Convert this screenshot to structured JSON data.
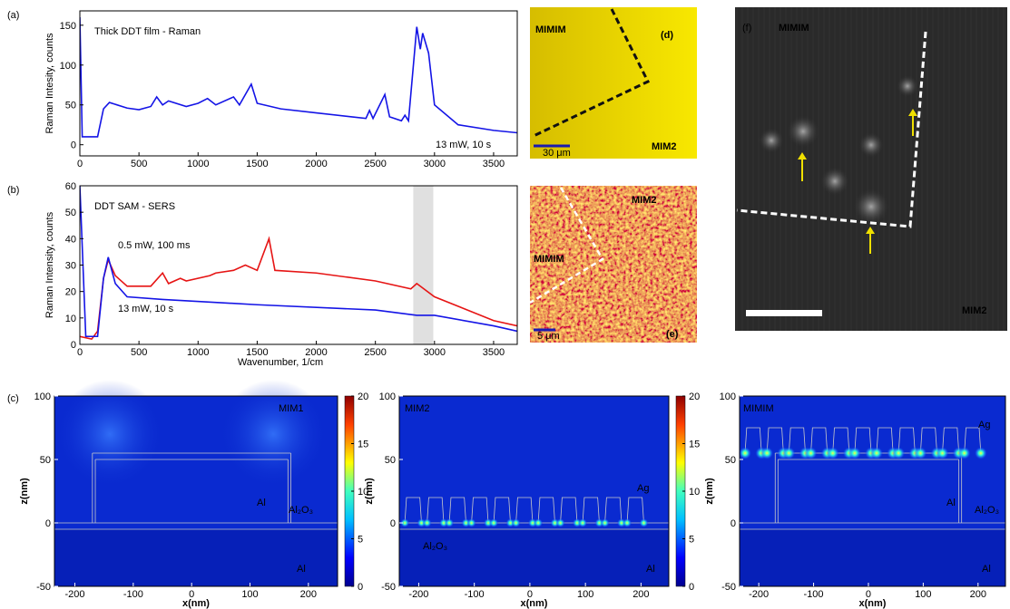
{
  "chart_data": [
    {
      "type": "line",
      "panel_label": "(a)",
      "title": "Thick DDT film - Raman",
      "ylabel": "Raman Intesity, counts",
      "xlim": [
        0,
        3700
      ],
      "ylim": [
        -14,
        168
      ],
      "xticks": [
        0,
        500,
        1000,
        1500,
        2000,
        2500,
        3000,
        3500
      ],
      "yticks": [
        0,
        50,
        100,
        150
      ],
      "annotations": [
        "13 mW, 10 s"
      ],
      "series": [
        {
          "color": "#1414e6",
          "x": [
            0,
            20,
            150,
            200,
            250,
            400,
            500,
            600,
            650,
            700,
            750,
            900,
            1000,
            1080,
            1150,
            1300,
            1350,
            1450,
            1500,
            1700,
            2000,
            2300,
            2420,
            2450,
            2480,
            2580,
            2620,
            2720,
            2750,
            2780,
            2850,
            2880,
            2900,
            2950,
            3000,
            3200,
            3500,
            3700
          ],
          "values": [
            160,
            10,
            10,
            45,
            53,
            46,
            44,
            48,
            60,
            50,
            55,
            48,
            52,
            58,
            50,
            60,
            50,
            76,
            52,
            45,
            40,
            35,
            33,
            43,
            33,
            63,
            35,
            30,
            37,
            30,
            148,
            120,
            140,
            115,
            50,
            25,
            18,
            15
          ]
        }
      ]
    },
    {
      "type": "line",
      "panel_label": "(b)",
      "title": "DDT SAM - SERS",
      "ylabel": "Raman Intensity, counts",
      "xlabel": "Wavenumber, 1/cm",
      "xlim": [
        0,
        3700
      ],
      "ylim": [
        0,
        60
      ],
      "xticks": [
        0,
        500,
        1000,
        1500,
        2000,
        2500,
        3000,
        3500
      ],
      "yticks": [
        0,
        10,
        20,
        30,
        40,
        50,
        60
      ],
      "shade": [
        2820,
        2990
      ],
      "annotations": [
        "0.5 mW, 100  ms",
        "13 mW, 10  s"
      ],
      "series": [
        {
          "color": "#e61414",
          "x": [
            0,
            100,
            150,
            200,
            240,
            300,
            400,
            600,
            700,
            750,
            850,
            900,
            1100,
            1150,
            1300,
            1400,
            1500,
            1600,
            1650,
            2000,
            2500,
            2800,
            2850,
            3000,
            3500,
            3700
          ],
          "values": [
            3,
            2,
            5,
            25,
            32,
            26,
            22,
            22,
            27,
            23,
            25,
            24,
            26,
            27,
            28,
            30,
            28,
            40,
            28,
            27,
            24,
            21,
            23,
            18,
            9,
            7
          ]
        },
        {
          "color": "#1414e6",
          "x": [
            0,
            50,
            150,
            200,
            240,
            300,
            400,
            700,
            1500,
            2500,
            2850,
            3000,
            3500,
            3700
          ],
          "values": [
            60,
            3,
            3,
            25,
            33,
            23,
            18,
            17,
            15,
            13,
            11,
            11,
            7,
            5
          ]
        }
      ]
    },
    {
      "type": "heatmap",
      "panel_label": "(c)",
      "xlabel": "x(nm)",
      "ylabel": "z(nm)",
      "xlim": [
        -235,
        250
      ],
      "ylim": [
        -50,
        100
      ],
      "xticks": [
        -200,
        -100,
        0,
        100,
        200
      ],
      "yticks": [
        -50,
        0,
        50,
        100
      ],
      "colorbar": true,
      "clim": [
        0,
        20
      ],
      "cticks": [
        0,
        5,
        10,
        15,
        20
      ],
      "annotations": [
        "MIM1",
        "Al",
        "Al₂O₃",
        "Al"
      ]
    },
    {
      "type": "heatmap",
      "xlabel": "x(nm)",
      "ylabel": "z(nm)",
      "xlim": [
        -235,
        250
      ],
      "ylim": [
        -50,
        100
      ],
      "xticks": [
        -200,
        -100,
        0,
        100,
        200
      ],
      "yticks": [
        -50,
        0,
        50,
        100
      ],
      "colorbar": true,
      "clim": [
        0,
        20
      ],
      "cticks": [
        0,
        5,
        10,
        15,
        20
      ],
      "annotations": [
        "MIM2",
        "Ag",
        "Al₂O₃",
        "Al"
      ]
    },
    {
      "type": "heatmap",
      "xlabel": "x(nm)",
      "ylabel": "z(nm)",
      "xlim": [
        -235,
        250
      ],
      "ylim": [
        -50,
        100
      ],
      "xticks": [
        -200,
        -100,
        0,
        100,
        200
      ],
      "yticks": [
        -50,
        0,
        50,
        100
      ],
      "colorbar": false,
      "annotations": [
        "MIMIM",
        "Ag",
        "Al",
        "Al₂O₃",
        "Al"
      ]
    }
  ],
  "images": [
    {
      "label": "(d)",
      "texts": [
        "MIMIM",
        "MIM2"
      ],
      "scale": "30 μm"
    },
    {
      "label": "(e)",
      "texts": [
        "MIM2",
        "MIMIM"
      ],
      "scale": "5 μm"
    },
    {
      "label": "(f)",
      "texts": [
        "MIMIM",
        "MIM2"
      ]
    }
  ]
}
